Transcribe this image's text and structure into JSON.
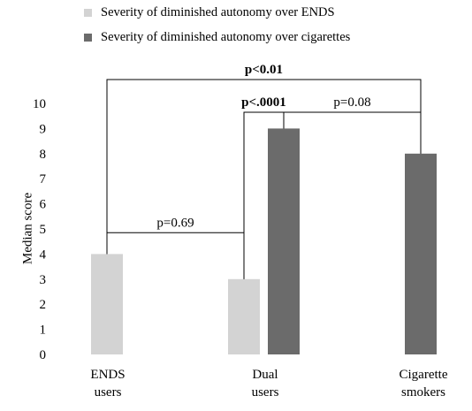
{
  "chart_data": {
    "type": "bar",
    "ylabel": "Median score",
    "ylim": [
      0,
      10
    ],
    "yticks": [
      "0",
      "1",
      "2",
      "3",
      "4",
      "5",
      "6",
      "7",
      "8",
      "9",
      "10"
    ],
    "categories": [
      {
        "line1": "ENDS",
        "line2": "users"
      },
      {
        "line1": "Dual",
        "line2": "users"
      },
      {
        "line1": "Cigarette",
        "line2": "smokers"
      }
    ],
    "series": [
      {
        "name": "Severity of diminished autonomy over ENDS",
        "color": "#d3d3d3",
        "values": [
          4,
          3,
          null
        ]
      },
      {
        "name": "Severity of diminished autonomy over cigarettes",
        "color": "#6b6b6b",
        "values": [
          null,
          9,
          8
        ]
      }
    ],
    "annotations": [
      {
        "text": "p=0.69",
        "bold": false,
        "from": {
          "category": 0,
          "series": 0
        },
        "to": {
          "category": 1,
          "series": 0
        },
        "level": 4.85
      },
      {
        "text": "p<.0001",
        "bold": true,
        "from": {
          "category": 1,
          "series": 0
        },
        "to": {
          "category": 1,
          "series": 1
        },
        "level": 9.65
      },
      {
        "text": "p=0.08",
        "bold": false,
        "from": {
          "category": 1,
          "series": 1
        },
        "to": {
          "category": 2,
          "series": 1
        },
        "level": 9.65
      },
      {
        "text": "p<0.01",
        "bold": true,
        "from": {
          "category": 0,
          "series": 0
        },
        "to": {
          "category": 2,
          "series": 1
        },
        "level": 10.95
      }
    ],
    "grid": false,
    "legend": "top"
  }
}
